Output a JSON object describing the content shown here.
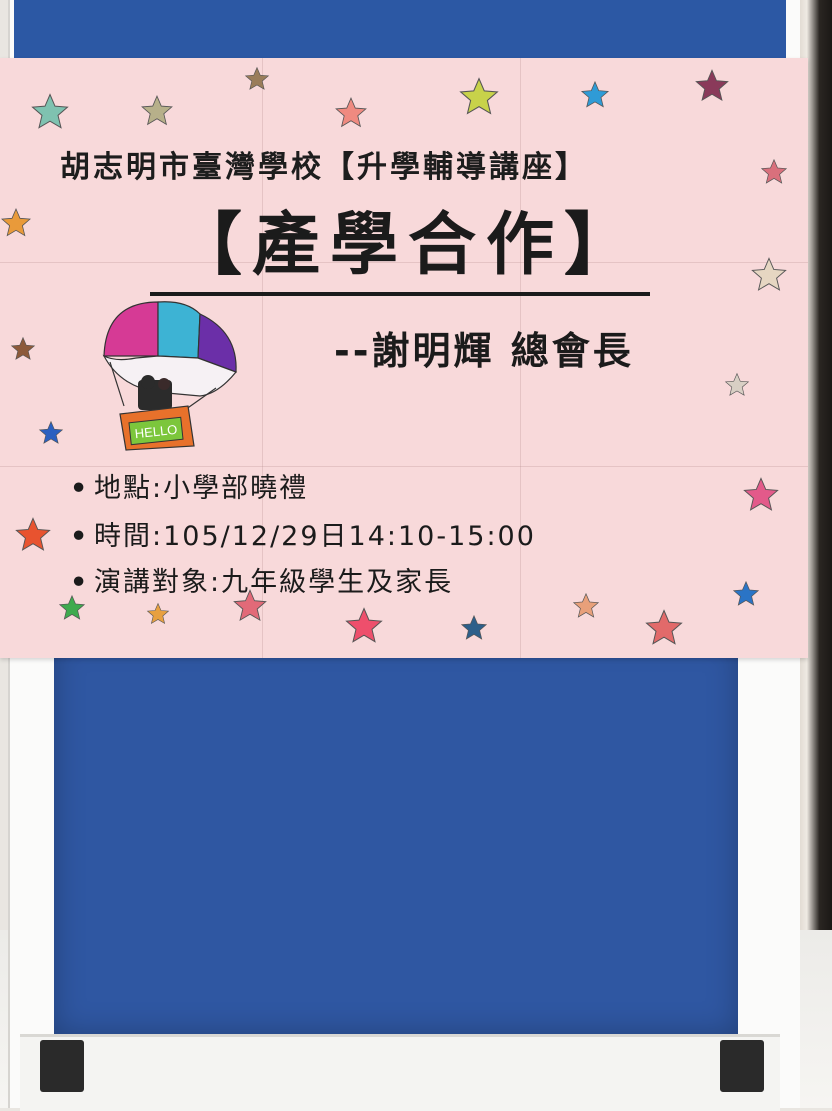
{
  "poster": {
    "school_line": "胡志明市臺灣學校【升學輔導講座】",
    "main_title": "【產學合作】",
    "speaker_line": "--謝明輝 總會長",
    "details": [
      {
        "text": "地點:小學部曉禮"
      },
      {
        "text": "時間:105/12/29日14:10-15:00"
      },
      {
        "text": "演講對象:九年級學生及家長"
      }
    ],
    "balloon_sign": "HELLO"
  },
  "colors": {
    "poster_bg": "#f8d9da",
    "board_blue": "#2f57a2",
    "balloon_pink": "#d63a95",
    "balloon_cyan": "#3db3d4",
    "balloon_purple": "#6b2fa8",
    "basket_orange": "#e8712b",
    "sign_green": "#7cc63c"
  },
  "icons": {
    "bullet": "bullet-dot",
    "star": "star-icon",
    "balloon": "hot-air-balloon-icon"
  }
}
